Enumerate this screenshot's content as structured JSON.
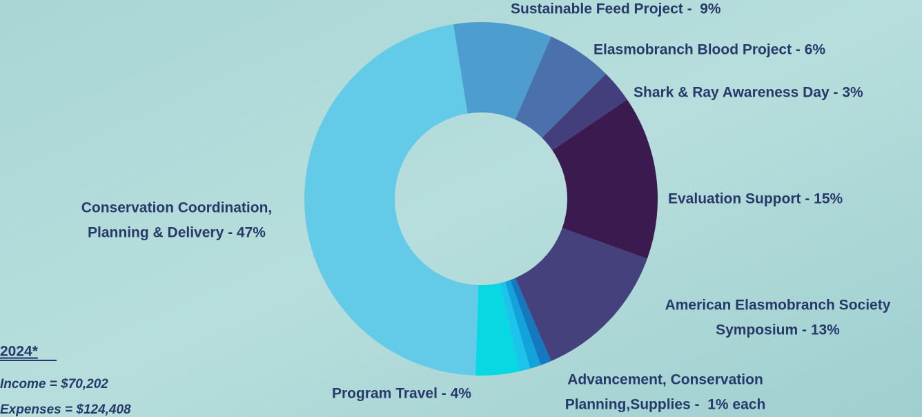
{
  "chart_data": {
    "type": "donut",
    "values": [
      9,
      6,
      3,
      15,
      13,
      1,
      1,
      1,
      4,
      47
    ],
    "colors": [
      "#4d9dcf",
      "#4a71ac",
      "#433f7c",
      "#3b1a4f",
      "#45417d",
      "#1479bf",
      "#12a3dc",
      "#1cc4ea",
      "#08d8e2",
      "#63cbe8"
    ],
    "slice_labels": [
      [
        "Sustainable Feed Project -  9%"
      ],
      [
        "Elasmobranch Blood Project - 6%"
      ],
      [
        "Shark & Ray Awareness Day - 3%"
      ],
      [
        "Evaluation Support - 15%"
      ],
      [
        "American Elasmobranch Society",
        "Symposium - 13%"
      ],
      [
        "Advancement, Conservation",
        "Planning,Supplies -  1% each"
      ],
      [
        "Program Travel - 4%"
      ],
      [
        "Conservation Coordination,",
        "Planning & Delivery - 47%"
      ]
    ],
    "notes": {
      "year": "2024*",
      "lines": [
        "Income = $70,202",
        "Expenses = $124,408"
      ]
    }
  }
}
